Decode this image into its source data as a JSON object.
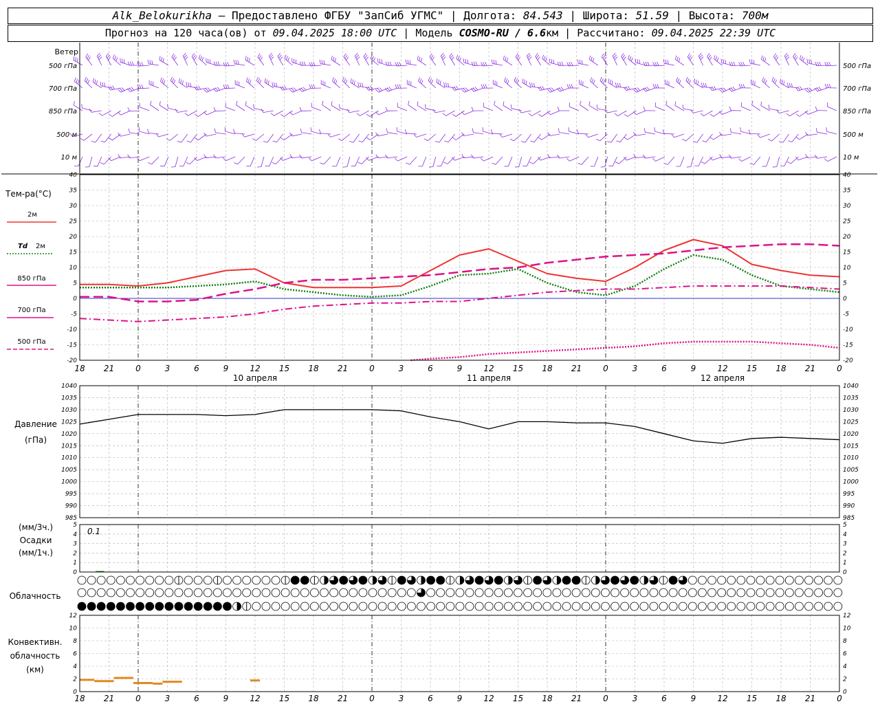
{
  "header": {
    "station": "Alk_Belokurikha",
    "dash": " – ",
    "provider": "Предоставлено ФГБУ \"ЗапСиб УГМС\"",
    "lon_label": "Долгота:",
    "lon": "84.543",
    "lat_label": "Широта:",
    "lat": "51.59",
    "alt_label": "Высота:",
    "alt": "700м",
    "forecast_label": "Прогноз на 120 часа(ов) от",
    "forecast_from": "09.04.2025 18:00 UTC",
    "model_label": "Модель",
    "model": "COSMO-RU / 6.6",
    "model_unit": "км",
    "calc_label": "Рассчитано:",
    "calc": "09.04.2025 22:39 UTC"
  },
  "colors": {
    "wind": "#8a2be2",
    "t2m": "#ee3333",
    "td2m": "#108010",
    "t850": "#dd1188",
    "t700": "#dd1188",
    "t500": "#dd1188",
    "pressure": "#000000",
    "precip": "#108010",
    "convective": "#e08a20",
    "zero_line": "#3333cc",
    "grid": "#b0b0b0"
  },
  "chart_data": [
    {
      "type": "wind-barbs",
      "title": "Ветер",
      "levels": [
        "500 гПа",
        "700 гПа",
        "850 гПа",
        "500 м",
        "10 м"
      ],
      "level_directions_deg": [
        300,
        280,
        270,
        250,
        230
      ],
      "level_speeds_ms": [
        18,
        14,
        6,
        4,
        3
      ]
    },
    {
      "type": "line",
      "ylabel": "Тем-ра(°C)",
      "ylim": [
        -20,
        40
      ],
      "yticks": [
        -20,
        -15,
        -10,
        -5,
        0,
        5,
        10,
        15,
        20,
        25,
        30,
        35,
        40
      ],
      "x_hours": [
        0,
        3,
        6,
        9,
        12,
        15,
        18,
        21,
        24,
        27,
        30,
        33,
        36,
        39,
        42,
        45,
        48,
        51,
        54,
        57,
        60,
        63,
        66,
        69,
        72,
        75,
        78
      ],
      "x_tick_labels": [
        "18",
        "21",
        "0",
        "3",
        "6",
        "9",
        "12",
        "15",
        "18",
        "21",
        "0",
        "3",
        "6",
        "9",
        "12",
        "15",
        "18",
        "21",
        "0",
        "3",
        "6",
        "9",
        "12",
        "15",
        "18",
        "21",
        "0"
      ],
      "day_labels": [
        {
          "hour": 18,
          "text": "10 апреля"
        },
        {
          "hour": 42,
          "text": "11 апреля"
        },
        {
          "hour": 66,
          "text": "12 апреля"
        }
      ],
      "series": [
        {
          "name": "2м",
          "style": "solid",
          "hours": [
            0,
            3,
            6,
            9,
            12,
            15,
            18,
            21,
            24,
            27,
            30,
            33,
            36,
            39,
            42,
            45,
            48,
            51,
            54,
            57,
            60,
            63,
            66,
            69,
            72,
            75,
            78
          ],
          "values": [
            4.5,
            4.5,
            4,
            5,
            7,
            9,
            9.5,
            5,
            3.5,
            3.5,
            3.5,
            4,
            9,
            14,
            16,
            12,
            8,
            6.5,
            5.5,
            10,
            15.5,
            19,
            17,
            11,
            9,
            7.5,
            7
          ]
        },
        {
          "name": "Td 2м",
          "style": "dotted",
          "hours": [
            0,
            3,
            6,
            9,
            12,
            15,
            18,
            21,
            24,
            27,
            30,
            33,
            36,
            39,
            42,
            45,
            48,
            51,
            54,
            57,
            60,
            63,
            66,
            69,
            72,
            75,
            78
          ],
          "values": [
            3.5,
            3.5,
            3.5,
            3.5,
            4,
            4.5,
            5.5,
            3,
            2,
            1,
            0.5,
            1,
            4,
            7.5,
            8,
            9.5,
            5,
            2,
            1,
            4,
            9.5,
            14,
            12.5,
            7.5,
            4,
            3,
            2
          ]
        },
        {
          "name": "850 гПа",
          "style": "longdash",
          "hours": [
            0,
            3,
            6,
            9,
            12,
            15,
            18,
            21,
            24,
            27,
            30,
            33,
            36,
            39,
            42,
            45,
            48,
            51,
            54,
            57,
            60,
            63,
            66,
            69,
            72,
            75,
            78
          ],
          "values": [
            0.5,
            0.5,
            -1,
            -1,
            -0.5,
            1.5,
            3,
            5,
            6,
            6,
            6.5,
            7,
            7.5,
            8.5,
            9.5,
            10,
            11.5,
            12.5,
            13.5,
            14,
            14.5,
            15.5,
            16.5,
            17,
            17.5,
            17.5,
            17
          ]
        },
        {
          "name": "700 гПа",
          "style": "dashdot",
          "hours": [
            0,
            3,
            6,
            9,
            12,
            15,
            18,
            21,
            24,
            27,
            30,
            33,
            36,
            39,
            42,
            45,
            48,
            51,
            54,
            57,
            60,
            63,
            66,
            69,
            72,
            75,
            78
          ],
          "values": [
            -6.5,
            -7,
            -7.5,
            -7,
            -6.5,
            -6,
            -5,
            -3.5,
            -2.5,
            -2,
            -1.5,
            -1.5,
            -1,
            -1,
            0,
            1,
            2,
            2.5,
            3,
            3,
            3.5,
            4,
            4,
            4,
            4,
            3.5,
            3
          ]
        },
        {
          "name": "500 гПа",
          "style": "dotted",
          "hours": [
            34,
            36,
            39,
            42,
            45,
            48,
            51,
            54,
            57,
            60,
            63,
            66,
            69,
            72,
            75,
            78
          ],
          "values": [
            -20,
            -19.5,
            -19,
            -18,
            -17.5,
            -17,
            -16.5,
            -16,
            -15.5,
            -14.5,
            -14,
            -14,
            -14,
            -14.5,
            -15,
            -16
          ]
        }
      ]
    },
    {
      "type": "line",
      "ylabel": "Давление",
      "yunit": "(гПа)",
      "ylim": [
        985,
        1040
      ],
      "yticks": [
        985,
        990,
        995,
        1000,
        1005,
        1010,
        1015,
        1020,
        1025,
        1030,
        1035,
        1040
      ],
      "series": [
        {
          "name": "Давление",
          "hours": [
            0,
            3,
            6,
            9,
            12,
            15,
            18,
            21,
            24,
            27,
            30,
            33,
            36,
            39,
            42,
            45,
            48,
            51,
            54,
            57,
            60,
            63,
            66,
            69,
            72,
            75,
            78
          ],
          "values": [
            1024,
            1026,
            1028,
            1028,
            1028,
            1027.5,
            1028,
            1030,
            1030,
            1030,
            1030,
            1029.5,
            1027,
            1025,
            1022,
            1025,
            1025,
            1024.5,
            1024.5,
            1023,
            1020,
            1017,
            1016,
            1018,
            1018.5,
            1018,
            1017.5
          ]
        }
      ]
    },
    {
      "type": "bar",
      "ylabel": "Осадки",
      "yunit_top": "(мм/3ч.)",
      "yunit_bottom": "(мм/1ч.)",
      "ylim": [
        0,
        5
      ],
      "yticks": [
        0,
        1,
        2,
        3,
        4,
        5
      ],
      "annotation": "0.1",
      "hours": [
        2
      ],
      "values": [
        0.1
      ]
    },
    {
      "type": "cloud-symbols",
      "ylabel": "Облачность",
      "rows": [
        "upper",
        "middle",
        "lower"
      ]
    },
    {
      "type": "bar",
      "ylabel": "Конвективн. облачность (км)",
      "ylim": [
        0,
        12
      ],
      "yticks": [
        0,
        2,
        4,
        6,
        8,
        10,
        12
      ],
      "segments": [
        {
          "from": 0,
          "to": 1.5,
          "value": 1.8
        },
        {
          "from": 1.5,
          "to": 3.5,
          "value": 1.6
        },
        {
          "from": 3.5,
          "to": 5.5,
          "value": 2.1
        },
        {
          "from": 5.5,
          "to": 7.5,
          "value": 1.3
        },
        {
          "from": 7.5,
          "to": 8.5,
          "value": 1.2
        },
        {
          "from": 8.5,
          "to": 10.5,
          "value": 1.5
        },
        {
          "from": 17.5,
          "to": 18.5,
          "value": 1.7
        }
      ]
    }
  ],
  "panel_labels": {
    "wind": "Ветер",
    "temp": "Тем-ра(°C)",
    "t2m": "2м",
    "td_symbol": "Td",
    "td_level": "2м",
    "t850": "850 гПа",
    "t700": "700 гПа",
    "t500": "500 гПа",
    "pressure": "Давление",
    "pressure_unit": "(гПа)",
    "precip_top": "(мм/3ч.)",
    "precip": "Осадки",
    "precip_bottom": "(мм/1ч.)",
    "clouds": "Облачность",
    "conv1": "Конвективн.",
    "conv2": "облачность",
    "conv3": "(км)"
  }
}
